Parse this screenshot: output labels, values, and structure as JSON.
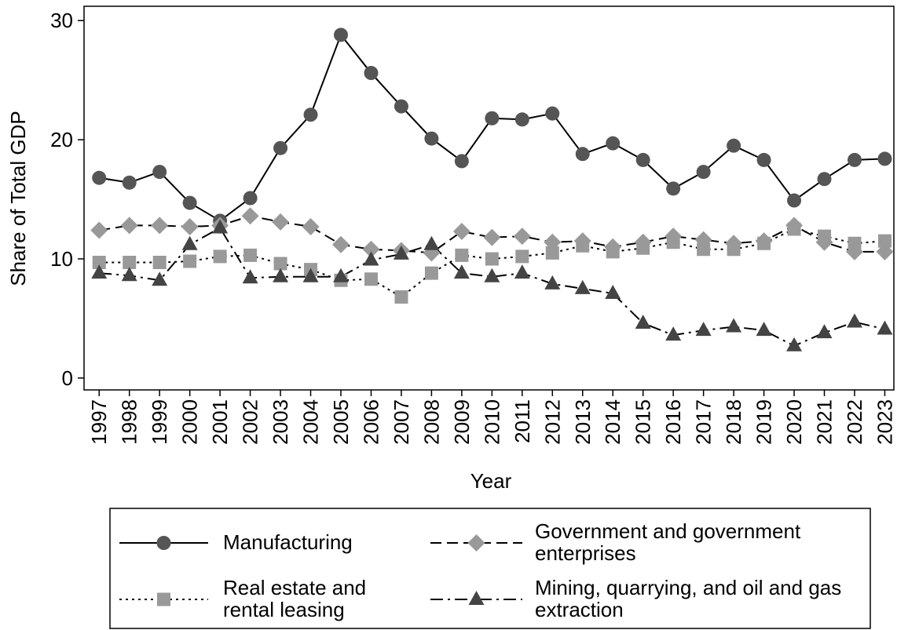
{
  "chart_data": {
    "type": "line",
    "y_label": "Share of Total GDP",
    "x_label": "Year",
    "x": [
      1997,
      1998,
      1999,
      2000,
      2001,
      2002,
      2003,
      2004,
      2005,
      2006,
      2007,
      2008,
      2009,
      2010,
      2011,
      2012,
      2013,
      2014,
      2015,
      2016,
      2017,
      2018,
      2019,
      2020,
      2021,
      2022,
      2023
    ],
    "xlim": [
      1996.5,
      2023.3
    ],
    "xticks": [
      1997,
      1998,
      1999,
      2000,
      2001,
      2002,
      2003,
      2004,
      2005,
      2006,
      2007,
      2008,
      2009,
      2010,
      2011,
      2012,
      2013,
      2014,
      2015,
      2016,
      2017,
      2018,
      2019,
      2020,
      2021,
      2022,
      2023
    ],
    "ylim": [
      -1,
      31.2
    ],
    "yticks": [
      0,
      10,
      20,
      30
    ],
    "series": [
      {
        "name": "Manufacturing",
        "color": "#555555",
        "marker": "circle",
        "dash": "solid",
        "values": [
          16.8,
          16.4,
          17.3,
          14.7,
          13.2,
          15.1,
          19.3,
          22.1,
          28.8,
          25.6,
          22.8,
          20.1,
          18.2,
          21.8,
          21.7,
          22.2,
          18.8,
          19.7,
          18.3,
          15.9,
          17.3,
          19.5,
          18.3,
          14.9,
          16.7,
          18.3,
          18.4
        ]
      },
      {
        "name": "Government and government enterprises",
        "color": "#999999",
        "marker": "diamond",
        "dash": "dash",
        "values": [
          12.4,
          12.8,
          12.8,
          12.7,
          12.8,
          13.6,
          13.1,
          12.7,
          11.2,
          10.8,
          10.7,
          10.5,
          12.3,
          11.8,
          11.9,
          11.4,
          11.5,
          11.0,
          11.4,
          11.9,
          11.6,
          11.3,
          11.5,
          12.8,
          11.4,
          10.6,
          10.6
        ]
      },
      {
        "name": "Real estate and rental leasing",
        "color": "#999999",
        "marker": "square",
        "dash": "dot",
        "values": [
          9.7,
          9.7,
          9.7,
          9.8,
          10.2,
          10.3,
          9.6,
          9.1,
          8.2,
          8.3,
          6.8,
          8.8,
          10.3,
          10.0,
          10.2,
          10.5,
          11.1,
          10.6,
          10.9,
          11.4,
          10.8,
          10.8,
          11.3,
          12.5,
          11.9,
          11.3,
          11.5
        ]
      },
      {
        "name": "Mining, quarrying, and oil and gas extraction",
        "color": "#444444",
        "marker": "triangle",
        "dash": "dashdot",
        "values": [
          8.8,
          8.6,
          8.2,
          11.2,
          12.6,
          8.4,
          8.5,
          8.5,
          8.5,
          9.9,
          10.4,
          11.2,
          8.8,
          8.5,
          8.8,
          7.9,
          7.5,
          7.1,
          4.6,
          3.6,
          4.0,
          4.3,
          4.0,
          2.7,
          3.8,
          4.7,
          4.1
        ]
      }
    ]
  }
}
